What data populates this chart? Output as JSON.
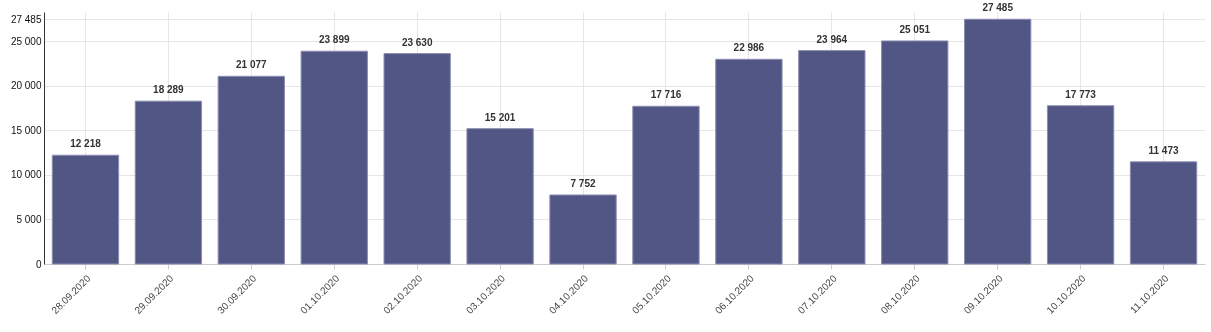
{
  "chart_data": {
    "type": "bar",
    "categories": [
      "28.09.2020",
      "29.09.2020",
      "30.09.2020",
      "01.10.2020",
      "02.10.2020",
      "03.10.2020",
      "04.10.2020",
      "05.10.2020",
      "06.10.2020",
      "07.10.2020",
      "08.10.2020",
      "09.10.2020",
      "10.10.2020",
      "11.10.2020"
    ],
    "values": [
      12218,
      18289,
      21077,
      23899,
      23630,
      15201,
      7752,
      17716,
      22986,
      23964,
      25051,
      27485,
      17773,
      11473
    ],
    "value_labels": [
      "12 218",
      "18 289",
      "21 077",
      "23 899",
      "23 630",
      "15 201",
      "7 752",
      "17 716",
      "22 986",
      "23 964",
      "25 051",
      "27 485",
      "17 773",
      "11 473"
    ],
    "color": "#4f5382",
    "ylim": [
      0,
      28300
    ],
    "yticks": [
      0,
      {
        "value": 5000,
        "label": "5 000"
      },
      {
        "value": 10000,
        "label": "10 000"
      },
      {
        "value": 15000,
        "label": "15 000"
      },
      {
        "value": 20000,
        "label": "20 000"
      },
      {
        "value": 25000,
        "label": "25 000"
      },
      {
        "value": 27485,
        "label": "27 485"
      }
    ],
    "grid": true
  }
}
